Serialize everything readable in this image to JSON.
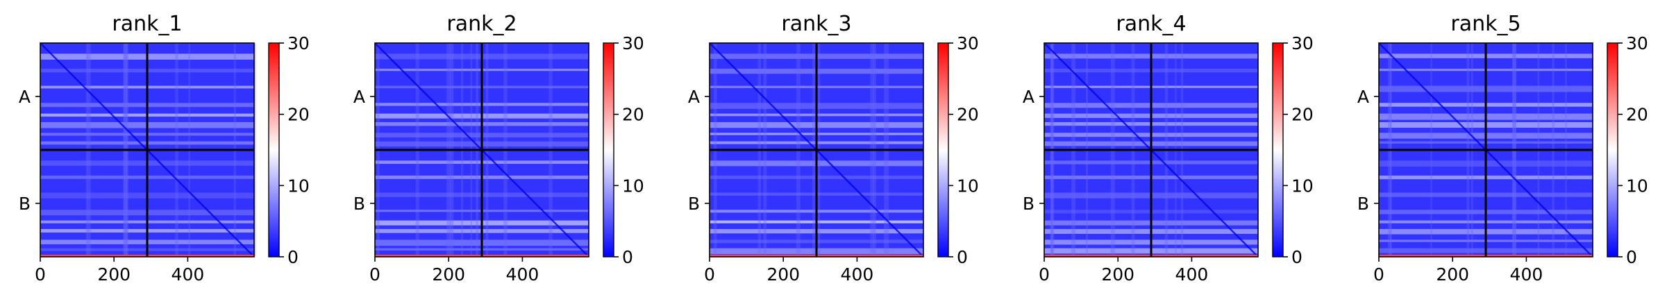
{
  "chart_data": [
    {
      "type": "heatmap",
      "title": "rank_1",
      "xticks": [
        0,
        200,
        400
      ],
      "yticks": [
        "A",
        "B"
      ],
      "xlim": [
        0,
        580
      ],
      "colorbar": {
        "ticks": [
          0,
          10,
          20,
          30
        ],
        "range": [
          0,
          30
        ]
      },
      "colormap": [
        "#0000ff",
        "#ffffff",
        "#ff0000"
      ],
      "chain_boundary": 290
    },
    {
      "type": "heatmap",
      "title": "rank_2",
      "xticks": [
        0,
        200,
        400
      ],
      "yticks": [
        "A",
        "B"
      ],
      "xlim": [
        0,
        580
      ],
      "colorbar": {
        "ticks": [
          0,
          10,
          20,
          30
        ],
        "range": [
          0,
          30
        ]
      },
      "colormap": [
        "#0000ff",
        "#ffffff",
        "#ff0000"
      ],
      "chain_boundary": 290
    },
    {
      "type": "heatmap",
      "title": "rank_3",
      "xticks": [
        0,
        200,
        400
      ],
      "yticks": [
        "A",
        "B"
      ],
      "xlim": [
        0,
        580
      ],
      "colorbar": {
        "ticks": [
          0,
          10,
          20,
          30
        ],
        "range": [
          0,
          30
        ]
      },
      "colormap": [
        "#0000ff",
        "#ffffff",
        "#ff0000"
      ],
      "chain_boundary": 290
    },
    {
      "type": "heatmap",
      "title": "rank_4",
      "xticks": [
        0,
        200,
        400
      ],
      "yticks": [
        "A",
        "B"
      ],
      "xlim": [
        0,
        580
      ],
      "colorbar": {
        "ticks": [
          0,
          10,
          20,
          30
        ],
        "range": [
          0,
          30
        ]
      },
      "colormap": [
        "#0000ff",
        "#ffffff",
        "#ff0000"
      ],
      "chain_boundary": 290
    },
    {
      "type": "heatmap",
      "title": "rank_5",
      "xticks": [
        0,
        200,
        400
      ],
      "yticks": [
        "A",
        "B"
      ],
      "xlim": [
        0,
        580
      ],
      "colorbar": {
        "ticks": [
          0,
          10,
          20,
          30
        ],
        "range": [
          0,
          30
        ]
      },
      "colormap": [
        "#0000ff",
        "#ffffff",
        "#ff0000"
      ],
      "chain_boundary": 290
    }
  ]
}
